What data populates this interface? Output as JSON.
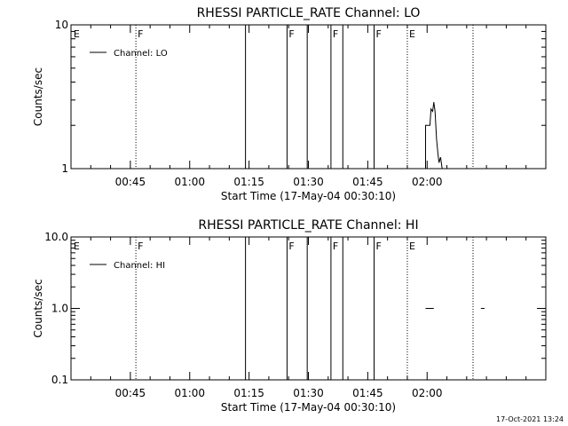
{
  "footer": {
    "timestamp": "17-Oct-2021 13:24"
  },
  "chart_data": [
    {
      "type": "line",
      "title": "RHESSI PARTICLE_RATE Channel: LO",
      "xlabel": "Start Time (17-May-04 00:30:10)",
      "ylabel": "Counts/sec",
      "y_scale": "log",
      "xlim_minutes": [
        0,
        120
      ],
      "ylim": [
        1,
        10
      ],
      "x_ticks": [
        {
          "min": 15,
          "label": "00:45"
        },
        {
          "min": 30,
          "label": "01:00"
        },
        {
          "min": 45,
          "label": "01:15"
        },
        {
          "min": 60,
          "label": "01:30"
        },
        {
          "min": 75,
          "label": "01:45"
        },
        {
          "min": 90,
          "label": "02:00"
        }
      ],
      "y_major_ticks": [
        {
          "value": 1,
          "label": "1"
        },
        {
          "value": 10,
          "label": "10"
        }
      ],
      "y_minor_ticks": [
        2,
        3,
        4,
        5,
        6,
        7,
        8,
        9
      ],
      "legend": {
        "position": "top-left",
        "entries": [
          "Channel: LO"
        ]
      },
      "markers": [
        {
          "min": 0.2,
          "label": "E",
          "style": "none"
        },
        {
          "min": 16.4,
          "label": "F",
          "style": "dotted"
        },
        {
          "min": 44.1,
          "label": "",
          "style": "solid"
        },
        {
          "min": 54.6,
          "label": "F",
          "style": "solid"
        },
        {
          "min": 59.7,
          "label": "",
          "style": "solid"
        },
        {
          "min": 65.7,
          "label": "F",
          "style": "solid"
        },
        {
          "min": 68.7,
          "label": "",
          "style": "solid"
        },
        {
          "min": 76.6,
          "label": "F",
          "style": "solid"
        },
        {
          "min": 85.0,
          "label": "E",
          "style": "dotted"
        },
        {
          "min": 101.6,
          "label": "",
          "style": "dotted"
        }
      ],
      "series": [
        {
          "x_minutes": [
            87.0,
            89.6,
            89.6,
            90.7,
            91.0,
            91.4,
            91.7,
            92.0,
            92.4,
            92.7,
            93.0,
            93.4,
            93.8
          ],
          "values": [
            1,
            1,
            2,
            2,
            2.6,
            2.5,
            2.9,
            2.5,
            1.6,
            1.3,
            1.1,
            1.2,
            1
          ]
        }
      ]
    },
    {
      "type": "line",
      "title": "RHESSI PARTICLE_RATE Channel: HI",
      "xlabel": "Start Time (17-May-04 00:30:10)",
      "ylabel": "Counts/sec",
      "y_scale": "log",
      "xlim_minutes": [
        0,
        120
      ],
      "ylim": [
        0.1,
        10
      ],
      "x_ticks": [
        {
          "min": 15,
          "label": "00:45"
        },
        {
          "min": 30,
          "label": "01:00"
        },
        {
          "min": 45,
          "label": "01:15"
        },
        {
          "min": 60,
          "label": "01:30"
        },
        {
          "min": 75,
          "label": "01:45"
        },
        {
          "min": 90,
          "label": "02:00"
        }
      ],
      "y_major_ticks": [
        {
          "value": 0.1,
          "label": "0.1"
        },
        {
          "value": 1,
          "label": "1.0"
        },
        {
          "value": 10,
          "label": "10.0"
        }
      ],
      "y_minor_ticks": [
        0.2,
        0.3,
        0.4,
        0.5,
        0.6,
        0.7,
        0.8,
        0.9,
        2,
        3,
        4,
        5,
        6,
        7,
        8,
        9
      ],
      "legend": {
        "position": "top-left",
        "entries": [
          "Channel: HI"
        ]
      },
      "markers": [
        {
          "min": 0.2,
          "label": "E",
          "style": "none"
        },
        {
          "min": 16.4,
          "label": "F",
          "style": "dotted"
        },
        {
          "min": 44.1,
          "label": "",
          "style": "solid"
        },
        {
          "min": 54.6,
          "label": "F",
          "style": "solid"
        },
        {
          "min": 59.7,
          "label": "",
          "style": "solid"
        },
        {
          "min": 65.7,
          "label": "F",
          "style": "solid"
        },
        {
          "min": 68.7,
          "label": "",
          "style": "solid"
        },
        {
          "min": 76.6,
          "label": "F",
          "style": "solid"
        },
        {
          "min": 85.0,
          "label": "E",
          "style": "dotted"
        },
        {
          "min": 101.6,
          "label": "",
          "style": "dotted"
        }
      ],
      "series": [
        {
          "x_minutes": [
            89.6,
            91.7
          ],
          "values": [
            1,
            1
          ]
        },
        {
          "x_minutes": [
            103.6,
            104.5
          ],
          "values": [
            1,
            1
          ]
        }
      ]
    }
  ]
}
